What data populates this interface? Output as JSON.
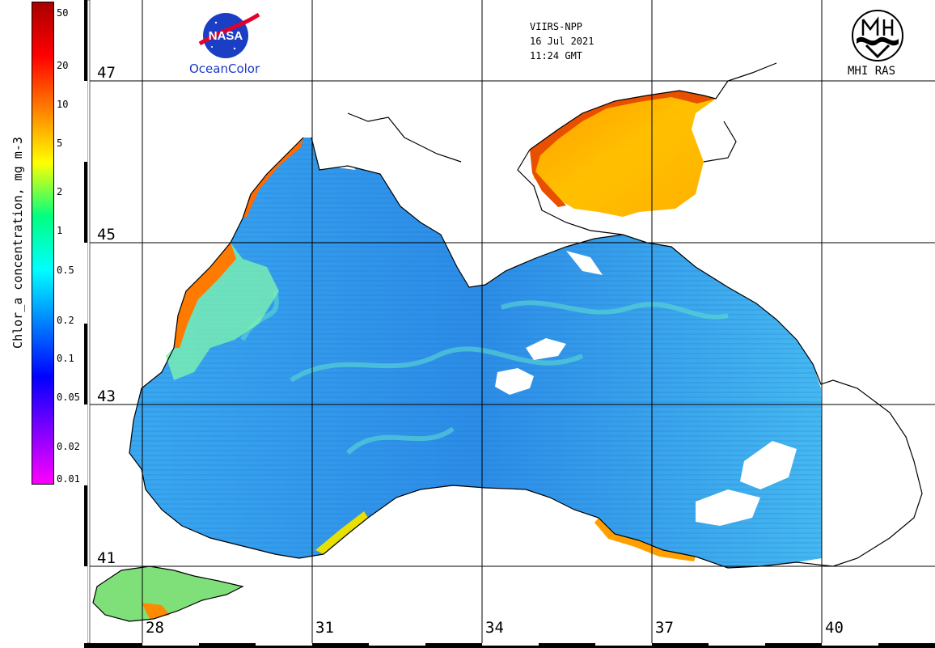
{
  "colorbar": {
    "title": "Chlor_a concentration, mg m-3",
    "ticks": [
      "50",
      "20",
      "10",
      "5",
      "2",
      "1",
      "0.5",
      "0.2",
      "0.1",
      "0.05",
      "0.02",
      "0.01"
    ],
    "colors": [
      "#a80000",
      "#ff0000",
      "#ff8000",
      "#ffff00",
      "#00ff80",
      "#00ffff",
      "#0080ff",
      "#0000ff",
      "#8000ff",
      "#ff00ff"
    ]
  },
  "map": {
    "latitudes": [
      "47",
      "45",
      "43",
      "41"
    ],
    "longitudes": [
      "28",
      "31",
      "34",
      "37",
      "40"
    ],
    "land_color": "#ffffff",
    "no_data_color": "#ffffff",
    "coast_color": "#000000",
    "grid_color": "#000000"
  },
  "header": {
    "nasa_logo_text": "NASA",
    "nasa_caption": "OceanColor",
    "sensor": "VIIRS-NPP",
    "date": "16 Jul 2021",
    "time": "11:24 GMT",
    "institute": "MHI RAS"
  }
}
